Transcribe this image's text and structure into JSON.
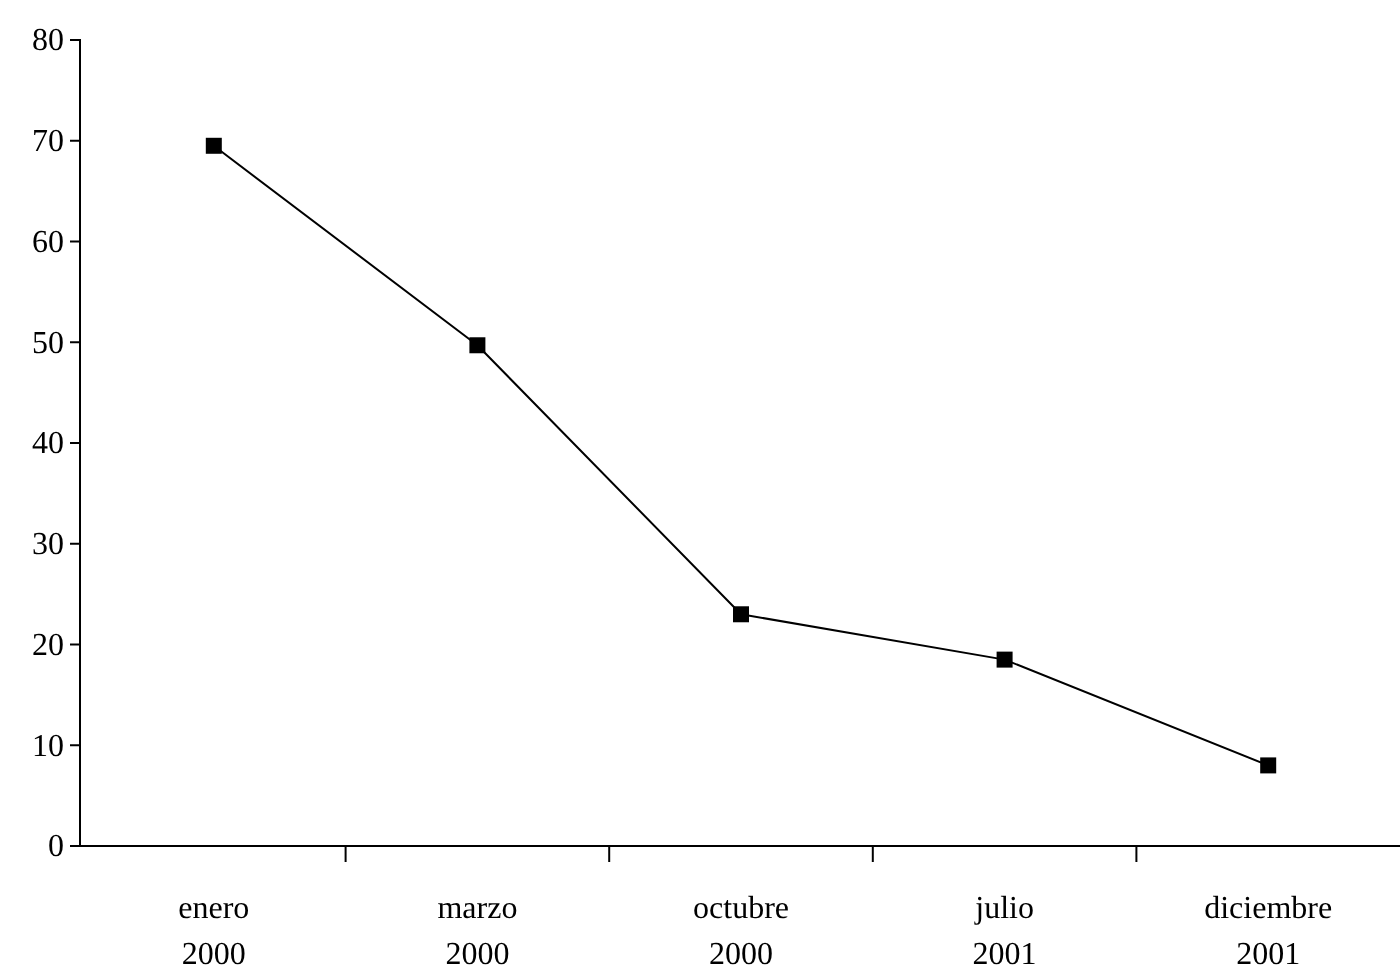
{
  "chart_data": {
    "type": "line",
    "categories": [
      "enero 2000",
      "marzo 2000",
      "octubre 2000",
      "julio 2001",
      "diciembre 2001"
    ],
    "series": [
      {
        "color": "#000000",
        "values": [
          69.5,
          49.7,
          23,
          18.5,
          8
        ]
      }
    ],
    "ylim": [
      0,
      80
    ],
    "yticks": [
      0,
      10,
      20,
      30,
      40,
      50,
      60,
      70,
      80
    ],
    "marker": "square",
    "line_style": "solid"
  }
}
